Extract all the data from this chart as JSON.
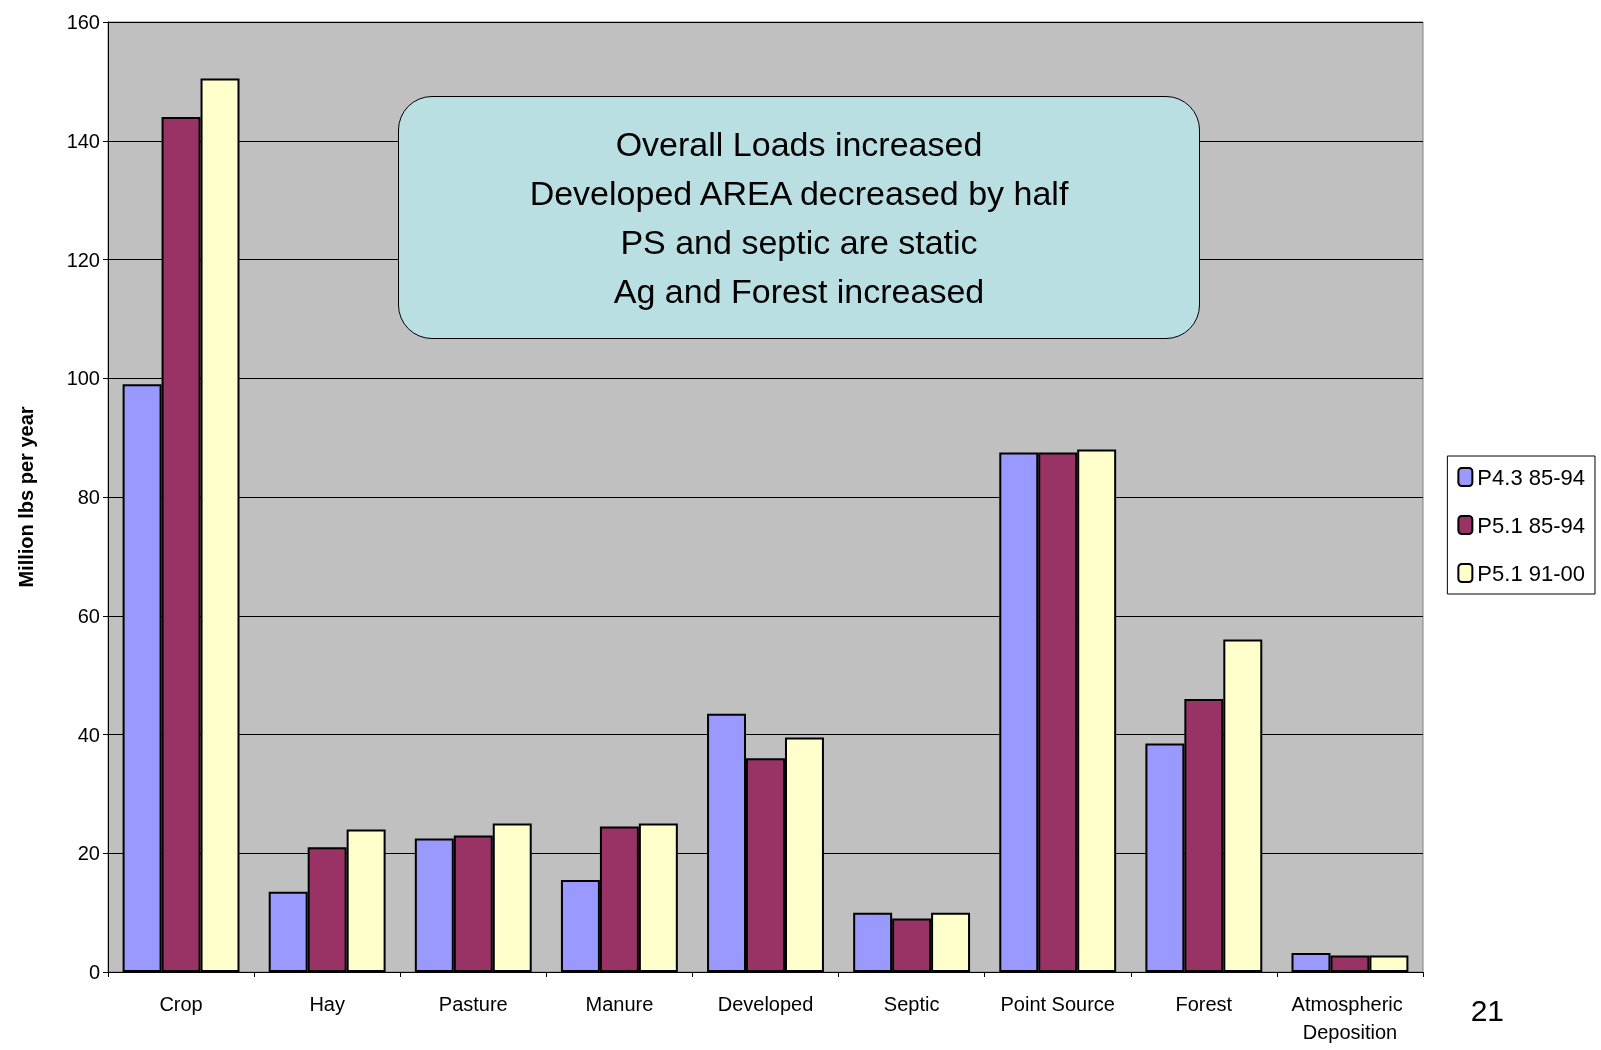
{
  "chart_data": {
    "type": "bar",
    "ylabel": "Million lbs per year",
    "categories": [
      "Crop",
      "Hay",
      "Pasture",
      "Manure",
      "Developed",
      "Septic",
      "Point Source",
      "Forest",
      "Atmospheric Deposition"
    ],
    "series": [
      {
        "name": "P4.3 85-94",
        "color": "#9999ff",
        "values": [
          99,
          13.5,
          22.5,
          15.5,
          43.5,
          10,
          87.5,
          38.5,
          3.2
        ]
      },
      {
        "name": "P5.1 85-94",
        "color": "#993366",
        "values": [
          144,
          21,
          23,
          24.5,
          36,
          9,
          87.5,
          46,
          2.8
        ]
      },
      {
        "name": "P5.1 91-00",
        "color": "#ffffcc",
        "values": [
          150.5,
          24,
          25,
          25,
          39.5,
          10,
          88,
          56,
          2.8
        ]
      }
    ],
    "ylim": [
      0,
      160
    ],
    "yticks": [
      0,
      20,
      40,
      60,
      80,
      100,
      120,
      140,
      160
    ],
    "grid": "y",
    "legend": "right",
    "annotations": [
      "Overall Loads increased",
      "Developed AREA decreased by half",
      "PS and septic are static",
      "Ag and Forest increased",
      "21"
    ]
  }
}
